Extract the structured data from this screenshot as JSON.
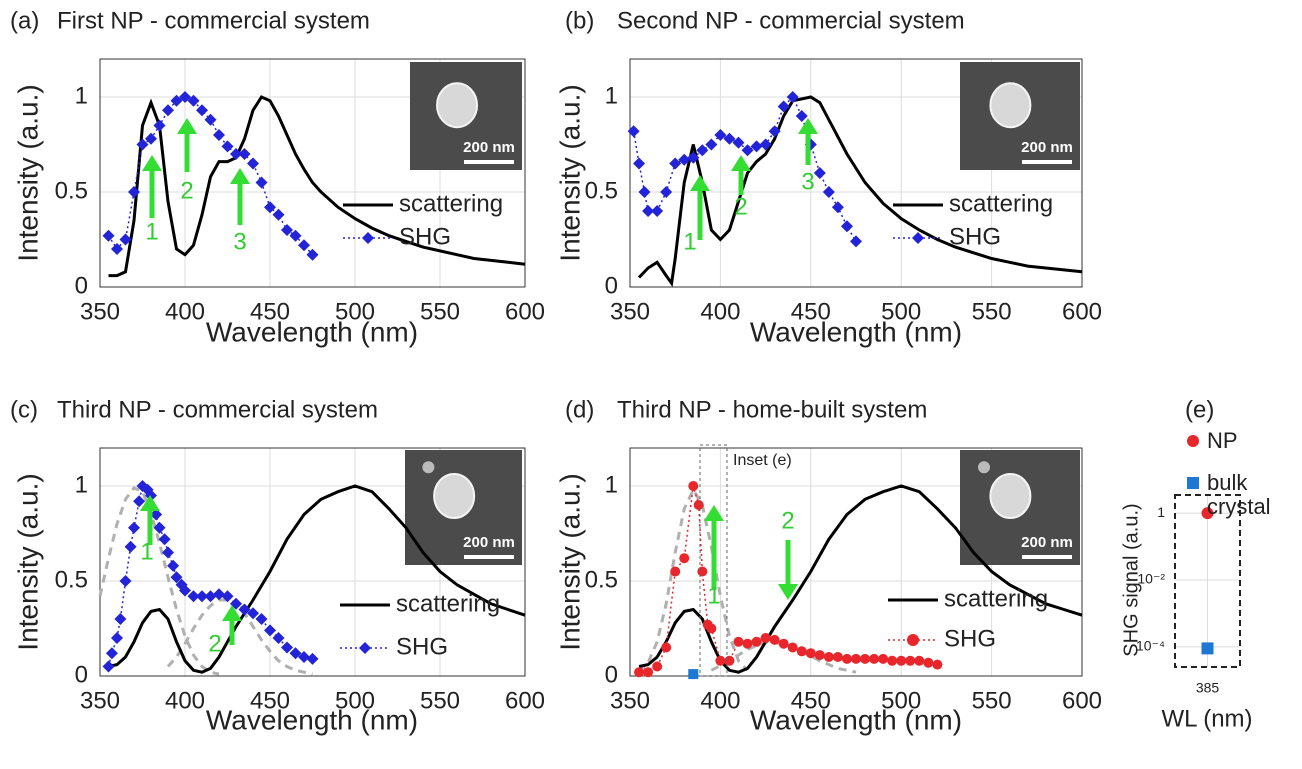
{
  "chart_data": [
    {
      "type": "line",
      "label": "(a)",
      "title": "First NP  - commercial system",
      "xlabel": "Wavelength (nm)",
      "ylabel": "Intensity (a.u.)",
      "xlim": [
        350,
        600
      ],
      "ylim": [
        0,
        1.2
      ],
      "xticks": [
        350,
        400,
        450,
        500,
        550,
        600
      ],
      "yticks": [
        0,
        0.5,
        1
      ],
      "grid": true,
      "inset_label": "200 nm",
      "annotations": [
        "1",
        "2",
        "3"
      ],
      "series": [
        {
          "name": "scattering",
          "color": "#000000",
          "style": "solid",
          "x": [
            355,
            360,
            365,
            370,
            375,
            380,
            385,
            390,
            395,
            400,
            405,
            410,
            415,
            420,
            425,
            430,
            435,
            440,
            445,
            450,
            455,
            460,
            465,
            470,
            475,
            480,
            490,
            500,
            510,
            520,
            530,
            540,
            550,
            560,
            570,
            580,
            590,
            600
          ],
          "values": [
            0.06,
            0.06,
            0.08,
            0.35,
            0.85,
            0.97,
            0.85,
            0.45,
            0.2,
            0.17,
            0.22,
            0.38,
            0.58,
            0.66,
            0.66,
            0.68,
            0.78,
            0.93,
            1.0,
            0.98,
            0.9,
            0.8,
            0.7,
            0.62,
            0.55,
            0.5,
            0.42,
            0.36,
            0.31,
            0.27,
            0.24,
            0.21,
            0.19,
            0.17,
            0.15,
            0.14,
            0.13,
            0.12
          ]
        },
        {
          "name": "SHG",
          "color": "#2323d8",
          "style": "dotted",
          "marker": "diamond",
          "x": [
            355,
            360,
            365,
            370,
            375,
            380,
            385,
            390,
            395,
            400,
            405,
            410,
            415,
            420,
            425,
            430,
            435,
            440,
            445,
            450,
            455,
            460,
            465,
            470,
            475
          ],
          "values": [
            0.27,
            0.2,
            0.25,
            0.5,
            0.75,
            0.78,
            0.85,
            0.93,
            0.98,
            1.0,
            0.98,
            0.93,
            0.88,
            0.8,
            0.74,
            0.7,
            0.7,
            0.65,
            0.55,
            0.42,
            0.38,
            0.3,
            0.27,
            0.22,
            0.17
          ]
        }
      ]
    },
    {
      "type": "line",
      "label": "(b)",
      "title": "Second NP  - commercial system",
      "xlabel": "Wavelength (nm)",
      "ylabel": "Intensity (a.u.)",
      "xlim": [
        350,
        600
      ],
      "ylim": [
        0,
        1.2
      ],
      "xticks": [
        350,
        400,
        450,
        500,
        550,
        600
      ],
      "yticks": [
        0,
        0.5,
        1
      ],
      "grid": true,
      "inset_label": "200 nm",
      "annotations": [
        "1",
        "2",
        "3"
      ],
      "series": [
        {
          "name": "scattering",
          "color": "#000000",
          "style": "solid",
          "x": [
            355,
            360,
            365,
            370,
            373,
            375,
            380,
            385,
            390,
            395,
            400,
            405,
            410,
            415,
            420,
            425,
            430,
            435,
            440,
            450,
            455,
            460,
            470,
            480,
            490,
            500,
            510,
            520,
            530,
            540,
            550,
            560,
            570,
            580,
            590,
            600
          ],
          "values": [
            0.05,
            0.1,
            0.13,
            0.06,
            0.02,
            0.15,
            0.55,
            0.75,
            0.55,
            0.3,
            0.25,
            0.3,
            0.45,
            0.6,
            0.66,
            0.7,
            0.78,
            0.9,
            0.98,
            1.0,
            0.97,
            0.88,
            0.7,
            0.55,
            0.44,
            0.36,
            0.3,
            0.25,
            0.21,
            0.18,
            0.15,
            0.13,
            0.11,
            0.1,
            0.09,
            0.08
          ]
        },
        {
          "name": "SHG",
          "color": "#2323d8",
          "style": "dotted",
          "marker": "diamond",
          "x": [
            352,
            355,
            358,
            360,
            365,
            370,
            375,
            380,
            385,
            390,
            395,
            400,
            405,
            410,
            415,
            420,
            425,
            430,
            435,
            440,
            445,
            450,
            455,
            460,
            465,
            470,
            475
          ],
          "values": [
            0.82,
            0.65,
            0.5,
            0.4,
            0.4,
            0.5,
            0.65,
            0.67,
            0.68,
            0.72,
            0.75,
            0.8,
            0.78,
            0.76,
            0.72,
            0.74,
            0.75,
            0.82,
            0.95,
            1.0,
            0.9,
            0.75,
            0.6,
            0.5,
            0.42,
            0.32,
            0.24
          ]
        }
      ]
    },
    {
      "type": "line",
      "label": "(c)",
      "title": "Third NP - commercial system",
      "xlabel": "Wavelength (nm)",
      "ylabel": "Intensity (a.u.)",
      "xlim": [
        350,
        600
      ],
      "ylim": [
        0,
        1.2
      ],
      "xticks": [
        350,
        400,
        450,
        500,
        550,
        600
      ],
      "yticks": [
        0,
        0.5,
        1
      ],
      "grid": true,
      "inset_label": "200 nm",
      "annotations": [
        "1",
        "2"
      ],
      "series": [
        {
          "name": "scattering",
          "color": "#000000",
          "style": "solid",
          "x": [
            355,
            360,
            365,
            370,
            375,
            380,
            385,
            390,
            395,
            400,
            405,
            410,
            415,
            420,
            425,
            430,
            440,
            450,
            460,
            470,
            480,
            490,
            500,
            510,
            520,
            530,
            540,
            550,
            560,
            570,
            580,
            590,
            600
          ],
          "values": [
            0.05,
            0.06,
            0.1,
            0.18,
            0.28,
            0.34,
            0.35,
            0.3,
            0.18,
            0.08,
            0.03,
            0.02,
            0.04,
            0.1,
            0.18,
            0.26,
            0.4,
            0.55,
            0.72,
            0.85,
            0.93,
            0.97,
            1.0,
            0.97,
            0.88,
            0.78,
            0.65,
            0.55,
            0.48,
            0.43,
            0.38,
            0.35,
            0.32
          ]
        },
        {
          "name": "SHG",
          "color": "#2323d8",
          "style": "dotted",
          "marker": "diamond",
          "x": [
            355,
            357,
            360,
            362,
            365,
            368,
            370,
            373,
            375,
            378,
            380,
            383,
            385,
            388,
            390,
            393,
            395,
            398,
            400,
            405,
            410,
            415,
            420,
            425,
            430,
            435,
            440,
            445,
            450,
            455,
            460,
            465,
            470,
            475
          ],
          "values": [
            0.05,
            0.12,
            0.2,
            0.3,
            0.5,
            0.68,
            0.78,
            0.92,
            1.0,
            0.98,
            0.95,
            0.85,
            0.78,
            0.72,
            0.65,
            0.58,
            0.52,
            0.48,
            0.45,
            0.42,
            0.42,
            0.42,
            0.43,
            0.42,
            0.38,
            0.35,
            0.33,
            0.3,
            0.24,
            0.2,
            0.15,
            0.12,
            0.1,
            0.09
          ]
        }
      ],
      "fits": [
        {
          "color": "#b0b0b0",
          "x": [
            350,
            355,
            360,
            365,
            370,
            375,
            380,
            385,
            390,
            395,
            400,
            405,
            410,
            415,
            420
          ],
          "values": [
            0.42,
            0.62,
            0.8,
            0.93,
            0.99,
            0.97,
            0.86,
            0.7,
            0.52,
            0.35,
            0.21,
            0.11,
            0.05,
            0.02,
            0.01
          ]
        },
        {
          "color": "#b0b0b0",
          "x": [
            390,
            395,
            400,
            405,
            410,
            415,
            420,
            425,
            430,
            435,
            440,
            445,
            450,
            455,
            460,
            465,
            470,
            475
          ],
          "values": [
            0.05,
            0.1,
            0.17,
            0.25,
            0.32,
            0.37,
            0.4,
            0.4,
            0.38,
            0.33,
            0.26,
            0.19,
            0.13,
            0.08,
            0.05,
            0.03,
            0.02,
            0.01
          ]
        }
      ]
    },
    {
      "type": "line",
      "label": "(d)",
      "title": "Third NP  - home-built system",
      "xlabel": "Wavelength (nm)",
      "ylabel": "Intensity (a.u.)",
      "xlim": [
        350,
        600
      ],
      "ylim": [
        0,
        1.2
      ],
      "xticks": [
        350,
        400,
        450,
        500,
        550,
        600
      ],
      "yticks": [
        0,
        0.5,
        1
      ],
      "grid": true,
      "inset_label": "200 nm",
      "annotations": [
        "1",
        "2"
      ],
      "box_label": "Inset (e)",
      "series": [
        {
          "name": "scattering",
          "color": "#000000",
          "style": "solid",
          "x": [
            355,
            360,
            365,
            370,
            375,
            380,
            385,
            390,
            395,
            400,
            405,
            410,
            415,
            420,
            425,
            430,
            440,
            450,
            460,
            470,
            480,
            490,
            500,
            510,
            520,
            530,
            540,
            550,
            560,
            570,
            580,
            590,
            600
          ],
          "values": [
            0.05,
            0.06,
            0.1,
            0.18,
            0.28,
            0.34,
            0.35,
            0.3,
            0.18,
            0.08,
            0.03,
            0.02,
            0.04,
            0.1,
            0.18,
            0.26,
            0.4,
            0.55,
            0.72,
            0.85,
            0.93,
            0.97,
            1.0,
            0.97,
            0.88,
            0.78,
            0.65,
            0.55,
            0.48,
            0.43,
            0.38,
            0.35,
            0.32
          ]
        },
        {
          "name": "SHG",
          "color": "#e8262b",
          "style": "dotted",
          "marker": "circle",
          "x": [
            355,
            360,
            365,
            370,
            375,
            380,
            385,
            388,
            390,
            393,
            395,
            400,
            405,
            410,
            415,
            420,
            425,
            430,
            435,
            440,
            445,
            450,
            455,
            460,
            465,
            470,
            475,
            480,
            485,
            490,
            495,
            500,
            505,
            510,
            515,
            520
          ],
          "values": [
            0.02,
            0.02,
            0.05,
            0.15,
            0.55,
            0.62,
            1.0,
            0.9,
            0.55,
            0.27,
            0.25,
            0.08,
            0.08,
            0.18,
            0.17,
            0.18,
            0.2,
            0.19,
            0.17,
            0.15,
            0.13,
            0.12,
            0.11,
            0.1,
            0.1,
            0.09,
            0.09,
            0.09,
            0.09,
            0.09,
            0.08,
            0.08,
            0.08,
            0.08,
            0.07,
            0.06
          ]
        }
      ],
      "fits": [
        {
          "color": "#b0b0b0",
          "x": [
            355,
            360,
            365,
            370,
            375,
            380,
            385,
            390,
            395,
            400,
            405,
            410,
            415
          ],
          "values": [
            0.02,
            0.07,
            0.18,
            0.38,
            0.65,
            0.88,
            0.98,
            0.9,
            0.68,
            0.42,
            0.21,
            0.08,
            0.03
          ]
        },
        {
          "color": "#b0b0b0",
          "x": [
            395,
            405,
            415,
            425,
            435,
            445,
            455,
            465,
            475
          ],
          "values": [
            0.03,
            0.08,
            0.14,
            0.18,
            0.17,
            0.13,
            0.08,
            0.04,
            0.02
          ]
        }
      ],
      "markers": [
        {
          "color": "#1f77d4",
          "marker": "square",
          "x": [
            385
          ],
          "values": [
            0.01
          ]
        }
      ]
    },
    {
      "type": "scatter",
      "label": "(e)",
      "xlabel": "WL (nm)",
      "ylabel": "SHG signal (a.u.)",
      "categories": [
        "385"
      ],
      "log_y": true,
      "ylim": [
        2.5e-05,
        3.5
      ],
      "yticks": [
        {
          "value": 0.0001,
          "label": "10⁻⁴"
        },
        {
          "value": 0.01,
          "label": "10⁻²"
        },
        1
      ],
      "grid": true,
      "series": [
        {
          "name": "NP",
          "color": "#e8262b",
          "marker": "circle",
          "values": [
            1
          ]
        },
        {
          "name": "bulk crystal",
          "color": "#1f77d4",
          "marker": "square",
          "values": [
            9e-05
          ]
        }
      ]
    }
  ]
}
